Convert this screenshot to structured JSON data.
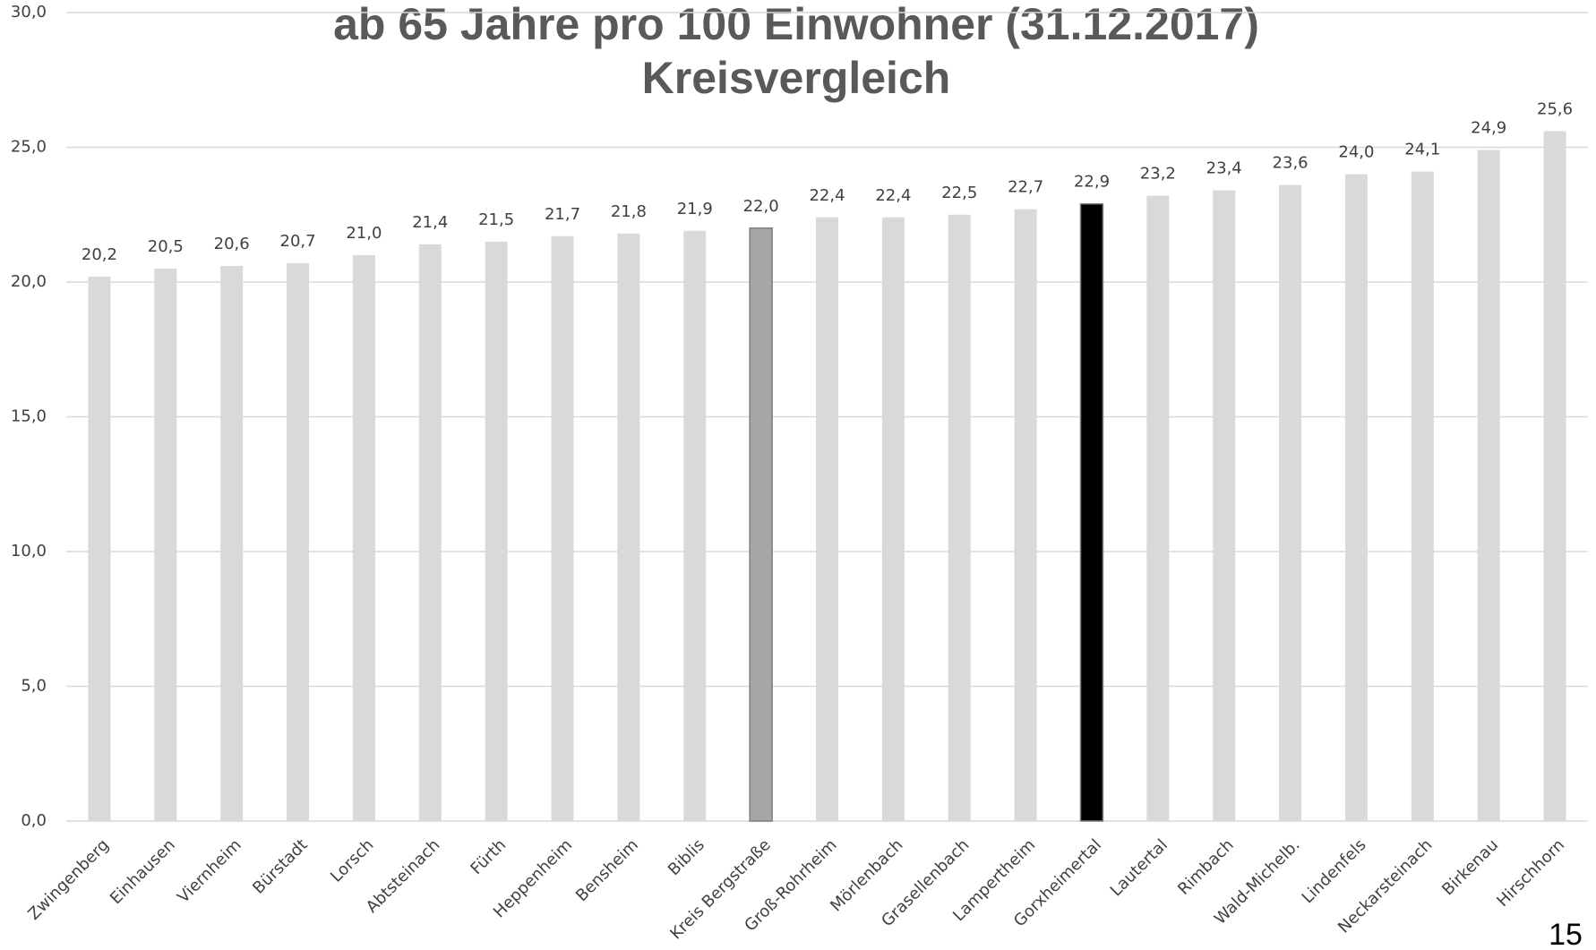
{
  "chart_data": {
    "type": "bar",
    "title": "ab 65 Jahre pro 100 Einwohner (31.12.2017)",
    "subtitle": "Kreisvergleich",
    "categories": [
      "Zwingenberg",
      "Einhausen",
      "Viernheim",
      "Bürstadt",
      "Lorsch",
      "Abtsteinach",
      "Fürth",
      "Heppenheim",
      "Bensheim",
      "Biblis",
      "Kreis Bergstraße",
      "Groß-Rohrheim",
      "Mörlenbach",
      "Grasellenbach",
      "Lampertheim",
      "Gorxheimertal",
      "Lautertal",
      "Rimbach",
      "Wald-Michelb.",
      "Lindenfels",
      "Neckarsteinach",
      "Birkenau",
      "Hirschhorn"
    ],
    "values": [
      20.2,
      20.5,
      20.6,
      20.7,
      21.0,
      21.4,
      21.5,
      21.7,
      21.8,
      21.9,
      22.0,
      22.4,
      22.4,
      22.5,
      22.7,
      22.9,
      23.2,
      23.4,
      23.6,
      24.0,
      24.1,
      24.9,
      25.6
    ],
    "value_labels": [
      "20,2",
      "20,5",
      "20,6",
      "20,7",
      "21,0",
      "21,4",
      "21,5",
      "21,7",
      "21,8",
      "21,9",
      "22,0",
      "22,4",
      "22,4",
      "22,5",
      "22,7",
      "22,9",
      "23,2",
      "23,4",
      "23,6",
      "24,0",
      "24,1",
      "24,9",
      "25,6"
    ],
    "colors": [
      "#d9d9d9",
      "#d9d9d9",
      "#d9d9d9",
      "#d9d9d9",
      "#d9d9d9",
      "#d9d9d9",
      "#d9d9d9",
      "#d9d9d9",
      "#d9d9d9",
      "#d9d9d9",
      "#a6a6a6",
      "#d9d9d9",
      "#d9d9d9",
      "#d9d9d9",
      "#d9d9d9",
      "#000000",
      "#d9d9d9",
      "#d9d9d9",
      "#d9d9d9",
      "#d9d9d9",
      "#d9d9d9",
      "#d9d9d9",
      "#d9d9d9"
    ],
    "ylim": [
      0,
      30
    ],
    "yticks": [
      {
        "value": 0,
        "label": "0,0"
      },
      {
        "value": 5,
        "label": "5,0"
      },
      {
        "value": 10,
        "label": "10,0"
      },
      {
        "value": 15,
        "label": "15,0"
      },
      {
        "value": 20,
        "label": "20,0"
      },
      {
        "value": 25,
        "label": "25,0"
      },
      {
        "value": 30,
        "label": "30,0"
      }
    ],
    "grid": true
  },
  "page_number": "15"
}
